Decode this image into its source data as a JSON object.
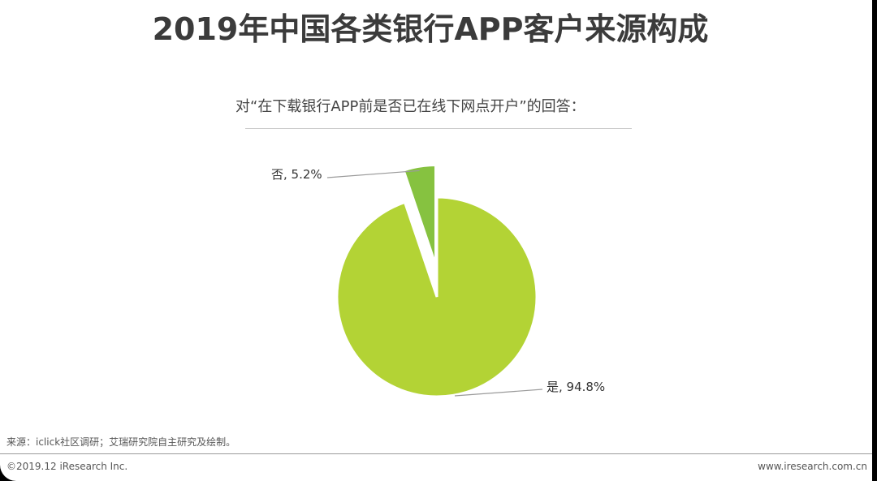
{
  "title": "2019年中国各类银行APP客户来源构成",
  "subtitle": "对“在下载银行APP前是否已在线下网点开户”的回答：",
  "source": "来源：iclick社区调研；艾瑞研究院自主研究及绘制。",
  "copyright": "©2019.12 iResearch Inc.",
  "website": "www.iresearch.com.cn",
  "colors": {
    "yes": "#b3d335",
    "no": "#86c240",
    "leader": "#9a9a9a",
    "title": "#3b3b3b"
  },
  "chart_data": {
    "type": "pie",
    "title": "对“在下载银行APP前是否已在线下网点开户”的回答：",
    "slices": [
      {
        "name": "是",
        "value": 94.8,
        "label": "是, 94.8%",
        "color": "#b3d335"
      },
      {
        "name": "否",
        "value": 5.2,
        "label": "否, 5.2%",
        "color": "#86c240",
        "exploded": true
      }
    ],
    "unit": "%",
    "legend": "none"
  }
}
